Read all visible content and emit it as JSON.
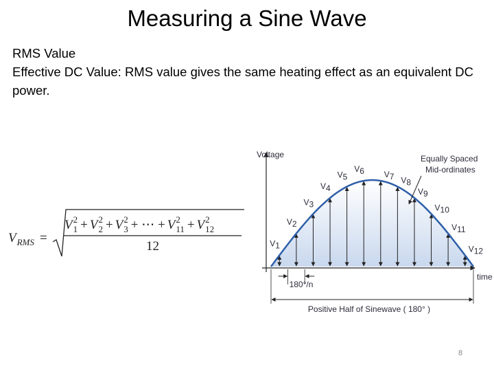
{
  "title": "Measuring a Sine Wave",
  "body": {
    "heading": "RMS Value",
    "text": "Effective DC Value: RMS value gives the same heating effect as an equivalent DC power."
  },
  "formula": {
    "lhs": {
      "base": "V",
      "sub": "RMS"
    },
    "equals": "=",
    "numerator": [
      {
        "base": "V",
        "sub": "1",
        "sup": "2"
      },
      {
        "op": "+"
      },
      {
        "base": "V",
        "sub": "2",
        "sup": "2"
      },
      {
        "op": "+"
      },
      {
        "base": "V",
        "sub": "3",
        "sup": "2"
      },
      {
        "op": "+ ⋯ +"
      },
      {
        "base": "V",
        "sub": "11",
        "sup": "2"
      },
      {
        "op": "+"
      },
      {
        "base": "V",
        "sub": "12",
        "sup": "2"
      }
    ],
    "denominator": "12"
  },
  "diagram": {
    "y_axis_label": "Voltage",
    "x_axis_label": "time",
    "annotation": [
      "Equally Spaced",
      "Mid-ordinates"
    ],
    "step_label": "180°/n",
    "span_label": "Positive Half of Sinewave ( 180° )",
    "ordinates": [
      {
        "base": "V",
        "sub": "1"
      },
      {
        "base": "V",
        "sub": "2"
      },
      {
        "base": "V",
        "sub": "3"
      },
      {
        "base": "V",
        "sub": "4"
      },
      {
        "base": "V",
        "sub": "5"
      },
      {
        "base": "V",
        "sub": "6"
      },
      {
        "base": "V",
        "sub": "7"
      },
      {
        "base": "V",
        "sub": "8"
      },
      {
        "base": "V",
        "sub": "9"
      },
      {
        "base": "V",
        "sub": "10"
      },
      {
        "base": "V",
        "sub": "11"
      },
      {
        "base": "V",
        "sub": "12"
      }
    ]
  },
  "page_number": "8"
}
